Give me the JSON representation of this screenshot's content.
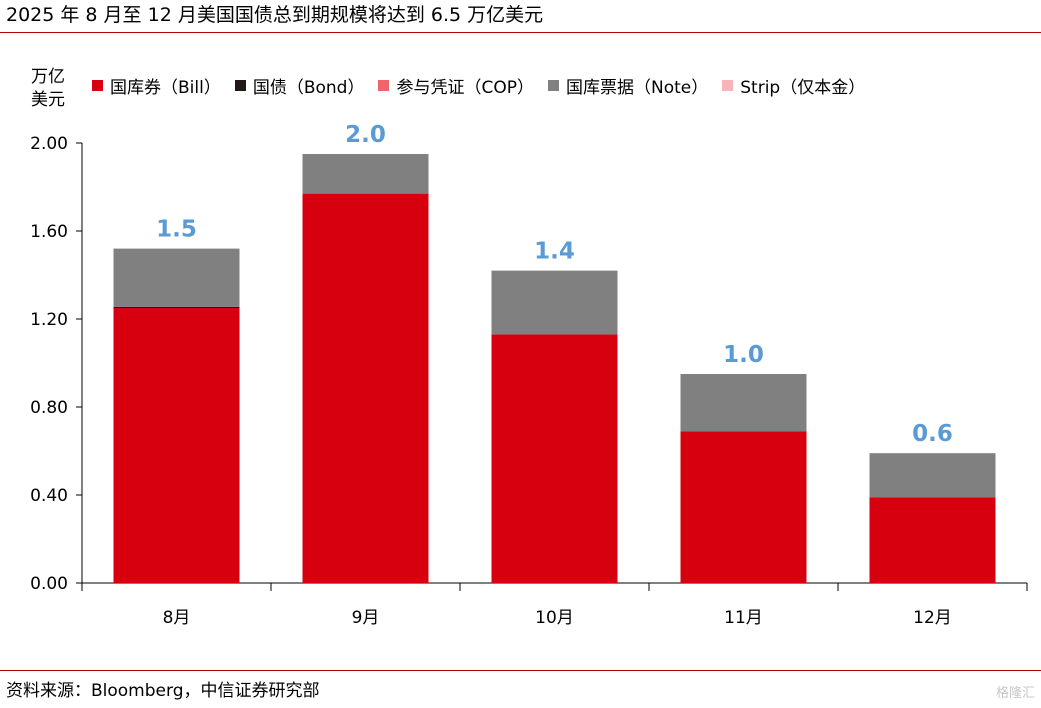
{
  "title": "2025 年 8 月至 12 月美国国债总到期规模将达到 6.5 万亿美元",
  "source": "资料来源：Bloomberg，中信证券研究部",
  "watermark": "格隆汇",
  "chart_data": {
    "type": "bar",
    "stacked": true,
    "title": "2025 年 8 月至 12 月美国国债总到期规模将达到 6.5 万亿美元",
    "unit_label": "万亿\n美元",
    "ylabel": "万亿美元",
    "ylim": [
      0,
      2.0
    ],
    "yticks": [
      "0.00",
      "0.40",
      "0.80",
      "1.20",
      "1.60",
      "2.00"
    ],
    "ytick_values": [
      0,
      0.4,
      0.8,
      1.2,
      1.6,
      2.0
    ],
    "grid": false,
    "legend_position": "top",
    "categories": [
      "8月",
      "9月",
      "10月",
      "11月",
      "12月"
    ],
    "series": [
      {
        "name": "国库券（Bill）",
        "color": "#d7000f",
        "values": [
          1.25,
          1.77,
          1.13,
          0.69,
          0.39
        ]
      },
      {
        "name": "国债（Bond）",
        "color": "#231816",
        "values": [
          0.005,
          0,
          0,
          0,
          0
        ]
      },
      {
        "name": "参与凭证（COP）",
        "color": "#f0646e",
        "values": [
          0,
          0,
          0,
          0,
          0
        ]
      },
      {
        "name": "国库票据（Note）",
        "color": "#808080",
        "values": [
          0.265,
          0.18,
          0.29,
          0.26,
          0.2
        ]
      },
      {
        "name": "Strip（仅本金）",
        "color": "#f7b5b9",
        "values": [
          0,
          0,
          0,
          0,
          0
        ]
      }
    ],
    "totals_labels": [
      "1.5",
      "2.0",
      "1.4",
      "1.0",
      "0.6"
    ],
    "totals": [
      1.52,
      1.95,
      1.42,
      0.95,
      0.59
    ]
  }
}
